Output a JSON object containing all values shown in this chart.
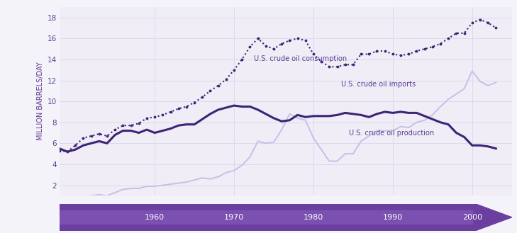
{
  "ylabel": "MILLION BARRELS/DAY",
  "ylim": [
    1,
    19
  ],
  "yticks": [
    2,
    4,
    6,
    8,
    10,
    12,
    14,
    16,
    18
  ],
  "xlim": [
    1948,
    2005
  ],
  "background_color": "#f5f3fa",
  "plot_bg_color": "#f0edf7",
  "grid_color": "#ddd8ee",
  "text_color": "#5c3d8f",
  "consumption_color": "#3d2475",
  "production_color": "#3d2475",
  "imports_color": "#c8bfe8",
  "arrow_color": "#6b3fa0",
  "years": [
    1948,
    1949,
    1950,
    1951,
    1952,
    1953,
    1954,
    1955,
    1956,
    1957,
    1958,
    1959,
    1960,
    1961,
    1962,
    1963,
    1964,
    1965,
    1966,
    1967,
    1968,
    1969,
    1970,
    1971,
    1972,
    1973,
    1974,
    1975,
    1976,
    1977,
    1978,
    1979,
    1980,
    1981,
    1982,
    1983,
    1984,
    1985,
    1986,
    1987,
    1988,
    1989,
    1990,
    1991,
    1992,
    1993,
    1994,
    1995,
    1996,
    1997,
    1998,
    1999,
    2000,
    2001,
    2002,
    2003
  ],
  "consumption": [
    5.3,
    5.2,
    5.8,
    6.5,
    6.7,
    6.9,
    6.7,
    7.3,
    7.7,
    7.7,
    7.9,
    8.4,
    8.5,
    8.7,
    9.0,
    9.3,
    9.5,
    9.9,
    10.4,
    11.0,
    11.5,
    12.1,
    13.0,
    14.0,
    15.2,
    16.0,
    15.3,
    15.0,
    15.5,
    15.8,
    16.0,
    15.8,
    14.5,
    13.8,
    13.3,
    13.3,
    13.5,
    13.5,
    14.5,
    14.5,
    14.8,
    14.8,
    14.5,
    14.4,
    14.5,
    14.8,
    15.0,
    15.2,
    15.5,
    16.0,
    16.5,
    16.5,
    17.5,
    17.8,
    17.5,
    17.0
  ],
  "production": [
    5.5,
    5.2,
    5.4,
    5.8,
    6.0,
    6.2,
    6.0,
    6.8,
    7.2,
    7.2,
    7.0,
    7.3,
    7.0,
    7.2,
    7.4,
    7.7,
    7.8,
    7.8,
    8.3,
    8.8,
    9.2,
    9.4,
    9.6,
    9.5,
    9.5,
    9.2,
    8.8,
    8.4,
    8.1,
    8.2,
    8.7,
    8.5,
    8.6,
    8.6,
    8.6,
    8.7,
    8.9,
    8.8,
    8.7,
    8.5,
    8.8,
    9.0,
    8.9,
    9.0,
    8.9,
    8.9,
    8.6,
    8.3,
    8.0,
    7.8,
    7.0,
    6.6,
    5.8,
    5.8,
    5.7,
    5.5
  ],
  "imports": [
    0.5,
    0.5,
    0.7,
    0.9,
    1.0,
    1.1,
    1.0,
    1.3,
    1.6,
    1.7,
    1.7,
    1.9,
    1.9,
    2.0,
    2.1,
    2.2,
    2.3,
    2.5,
    2.7,
    2.6,
    2.8,
    3.2,
    3.4,
    3.9,
    4.7,
    6.2,
    6.0,
    6.1,
    7.3,
    8.8,
    8.4,
    8.2,
    6.5,
    5.4,
    4.3,
    4.3,
    5.0,
    5.0,
    6.2,
    6.7,
    7.2,
    7.2,
    7.2,
    7.6,
    7.5,
    8.0,
    8.2,
    8.7,
    9.5,
    10.2,
    10.7,
    11.2,
    12.9,
    11.9,
    11.5,
    11.8
  ],
  "label_consumption": "U.S. crude oil consumption",
  "label_production": "U.S. crude oil production",
  "label_imports": "U.S. crude oil imports",
  "timeline_years": [
    1960,
    1970,
    1980,
    1990,
    2000
  ]
}
